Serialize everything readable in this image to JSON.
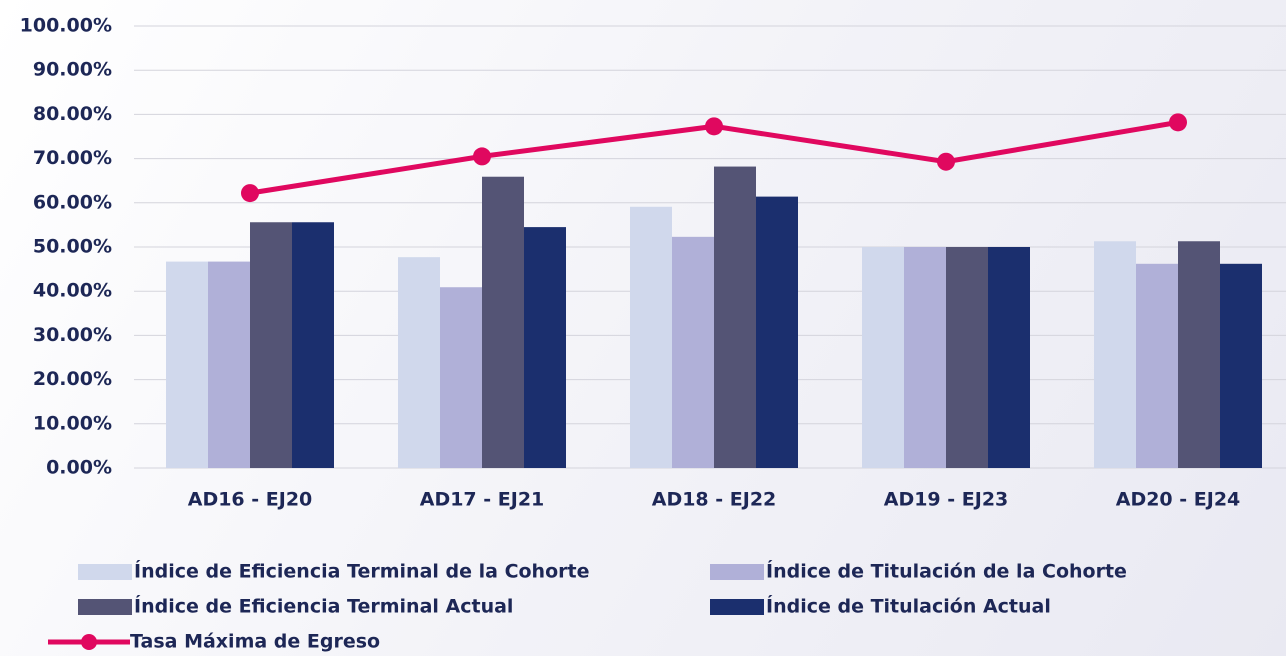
{
  "chart_data": {
    "type": "bar",
    "categories": [
      "AD16 - EJ20",
      "AD17 - EJ21",
      "AD18 - EJ22",
      "AD19 - EJ23",
      "AD20 - EJ24"
    ],
    "series": [
      {
        "name": "Índice de Eficiencia Terminal de la Cohorte",
        "color": "#d0d8ec",
        "values": [
          46.7,
          47.7,
          59.1,
          50,
          51.3
        ]
      },
      {
        "name": "Índice de Titulación de la Cohorte",
        "color": "#b0b0d8",
        "values": [
          46.7,
          40.9,
          52.3,
          50,
          46.2
        ]
      },
      {
        "name": "Índice de Eficiencia Terminal Actual",
        "color": "#545475",
        "values": [
          55.6,
          65.9,
          68.2,
          50,
          51.3
        ]
      },
      {
        "name": "Índice de Titulación Actual",
        "color": "#1b2f6e",
        "values": [
          55.6,
          54.5,
          61.4,
          50,
          46.2
        ]
      },
      {
        "name": "Tasa Máxima de Egreso",
        "color": "#e0085f",
        "type": "line",
        "values": [
          62.2,
          70.5,
          77.3,
          69.3,
          78.2
        ]
      }
    ],
    "ylim": [
      0,
      100
    ],
    "yticks": [
      {
        "value": 0,
        "label": "0.00%"
      },
      {
        "value": 10,
        "label": "10.00%"
      },
      {
        "value": 20,
        "label": "20.00%"
      },
      {
        "value": 30,
        "label": "30.00%"
      },
      {
        "value": 40,
        "label": "40.00%"
      },
      {
        "value": 50,
        "label": "50.00%"
      },
      {
        "value": 60,
        "label": "60.00%"
      },
      {
        "value": 70,
        "label": "70.00%"
      },
      {
        "value": 80,
        "label": "80.00%"
      },
      {
        "value": 90,
        "label": "90.00%"
      },
      {
        "value": 100,
        "label": "100.00%"
      }
    ],
    "grid": true
  }
}
